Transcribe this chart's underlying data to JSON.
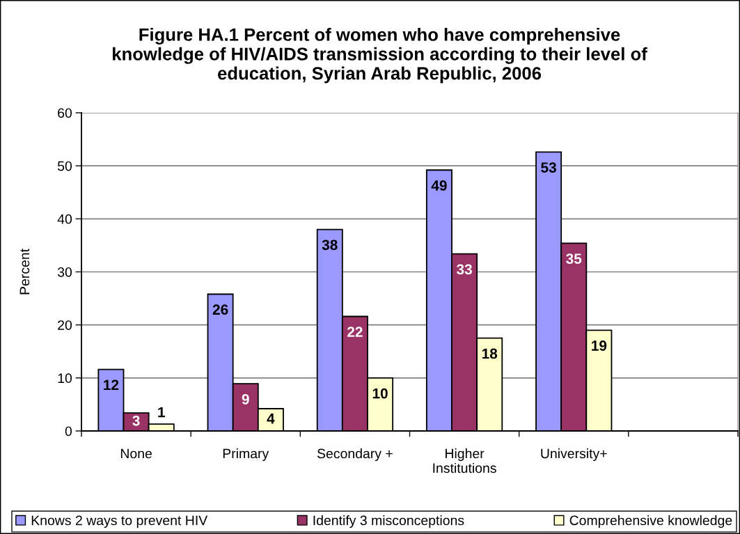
{
  "chart_data": {
    "type": "bar",
    "title": "Figure HA.1 Percent of women who have comprehensive\nknowledge of HIV/AIDS transmission according to their level of\neducation, Syrian Arab Republic, 2006",
    "ylabel": "Percent",
    "categories": [
      "None",
      "Primary",
      "Secondary +",
      "Higher\nInstitutions",
      "University+",
      null
    ],
    "series": [
      {
        "name": "Knows 2 ways to prevent HIV",
        "color": "#9999ff",
        "values": [
          11.6,
          25.8,
          38.0,
          49.2,
          52.6,
          null
        ],
        "value_labels": [
          "12",
          "26",
          "38",
          "49",
          "53",
          null
        ]
      },
      {
        "name": "Identify 3 misconceptions",
        "color": "#993366",
        "values": [
          3.4,
          8.9,
          21.6,
          33.4,
          35.4,
          null
        ],
        "value_labels": [
          "3",
          "9",
          "22",
          "33",
          "35",
          null
        ]
      },
      {
        "name": "Comprehensive knowledge",
        "color": "#ffffcc",
        "values": [
          1.3,
          4.2,
          10.0,
          17.5,
          19.0,
          null
        ],
        "value_labels": [
          "1",
          "4",
          "10",
          "18",
          "19",
          null
        ]
      }
    ],
    "ylim": [
      0,
      60
    ],
    "yticks": [
      0,
      10,
      20,
      30,
      40,
      50,
      60
    ],
    "grid": "y",
    "legend": "bottom"
  }
}
